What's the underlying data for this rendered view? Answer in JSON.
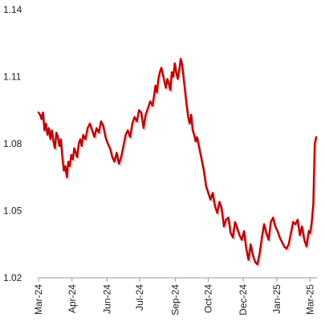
{
  "chart_data": {
    "type": "line",
    "title": "",
    "xlabel": "",
    "ylabel": "",
    "ylim": [
      1.02,
      1.14
    ],
    "yticks": [
      "1.02",
      "1.05",
      "1.08",
      "1.11",
      "1.14"
    ],
    "xticks": [
      "Mar-24",
      "Apr-24",
      "Jun-24",
      "Jul-24",
      "Sep-24",
      "Oct-24",
      "Dec-24",
      "Jan-25",
      "Mar-25"
    ],
    "grid": false,
    "legend": "none",
    "colors": {
      "line": "#c00000",
      "axis": "#9a9a9a",
      "text": "#222222"
    },
    "series": [
      {
        "x": [
          "2024-03-01",
          "2024-03-03",
          "2024-03-05",
          "2024-03-07",
          "2024-03-09",
          "2024-03-11",
          "2024-03-13",
          "2024-03-15",
          "2024-03-17",
          "2024-03-19",
          "2024-03-21",
          "2024-03-23",
          "2024-03-25",
          "2024-03-27",
          "2024-03-29",
          "2024-03-31",
          "2024-04-02",
          "2024-04-04",
          "2024-04-06",
          "2024-04-08",
          "2024-04-10",
          "2024-04-12",
          "2024-04-14",
          "2024-04-16",
          "2024-04-18",
          "2024-04-20",
          "2024-04-22",
          "2024-04-24",
          "2024-04-26",
          "2024-04-28",
          "2024-04-30",
          "2024-05-03",
          "2024-05-06",
          "2024-05-09",
          "2024-05-12",
          "2024-05-15",
          "2024-05-18",
          "2024-05-21",
          "2024-05-24",
          "2024-05-27",
          "2024-05-30",
          "2024-06-02",
          "2024-06-05",
          "2024-06-08",
          "2024-06-11",
          "2024-06-14",
          "2024-06-17",
          "2024-06-20",
          "2024-06-23",
          "2024-06-26",
          "2024-06-29",
          "2024-07-02",
          "2024-07-05",
          "2024-07-08",
          "2024-07-11",
          "2024-07-14",
          "2024-07-17",
          "2024-07-20",
          "2024-07-23",
          "2024-07-26",
          "2024-07-29",
          "2024-08-01",
          "2024-08-03",
          "2024-08-05",
          "2024-08-07",
          "2024-08-09",
          "2024-08-11",
          "2024-08-13",
          "2024-08-15",
          "2024-08-17",
          "2024-08-19",
          "2024-08-21",
          "2024-08-23",
          "2024-08-25",
          "2024-08-27",
          "2024-08-29",
          "2024-08-31",
          "2024-09-02",
          "2024-09-04",
          "2024-09-06",
          "2024-09-08",
          "2024-09-10",
          "2024-09-12",
          "2024-09-14",
          "2024-09-16",
          "2024-09-18",
          "2024-09-20",
          "2024-09-22",
          "2024-09-24",
          "2024-09-26",
          "2024-09-28",
          "2024-09-30",
          "2024-10-03",
          "2024-10-06",
          "2024-10-09",
          "2024-10-12",
          "2024-10-15",
          "2024-10-18",
          "2024-10-21",
          "2024-10-24",
          "2024-10-27",
          "2024-10-30",
          "2024-11-02",
          "2024-11-05",
          "2024-11-08",
          "2024-11-11",
          "2024-11-14",
          "2024-11-17",
          "2024-11-20",
          "2024-11-23",
          "2024-11-26",
          "2024-11-29",
          "2024-12-02",
          "2024-12-05",
          "2024-12-08",
          "2024-12-11",
          "2024-12-14",
          "2024-12-17",
          "2024-12-20",
          "2024-12-23",
          "2024-12-26",
          "2024-12-29",
          "2025-01-01",
          "2025-01-04",
          "2025-01-07",
          "2025-01-10",
          "2025-01-13",
          "2025-01-16",
          "2025-01-19",
          "2025-01-22",
          "2025-01-25",
          "2025-01-28",
          "2025-01-31",
          "2025-02-03",
          "2025-02-06",
          "2025-02-09",
          "2025-02-12",
          "2025-02-15",
          "2025-02-18",
          "2025-02-21",
          "2025-02-24",
          "2025-02-27",
          "2025-03-01",
          "2025-03-03",
          "2025-03-05",
          "2025-03-07",
          "2025-03-09"
        ],
        "y": [
          1.094,
          1.093,
          1.091,
          1.094,
          1.086,
          1.089,
          1.084,
          1.087,
          1.082,
          1.086,
          1.081,
          1.078,
          1.085,
          1.083,
          1.079,
          1.082,
          1.074,
          1.068,
          1.07,
          1.065,
          1.072,
          1.07,
          1.075,
          1.073,
          1.078,
          1.076,
          1.074,
          1.08,
          1.082,
          1.079,
          1.084,
          1.082,
          1.087,
          1.089,
          1.086,
          1.083,
          1.087,
          1.085,
          1.09,
          1.088,
          1.083,
          1.08,
          1.078,
          1.074,
          1.072,
          1.076,
          1.071,
          1.074,
          1.079,
          1.084,
          1.086,
          1.083,
          1.089,
          1.092,
          1.09,
          1.095,
          1.094,
          1.087,
          1.093,
          1.096,
          1.099,
          1.097,
          1.101,
          1.106,
          1.103,
          1.109,
          1.112,
          1.114,
          1.111,
          1.108,
          1.105,
          1.109,
          1.107,
          1.104,
          1.112,
          1.11,
          1.116,
          1.112,
          1.109,
          1.113,
          1.118,
          1.115,
          1.109,
          1.103,
          1.097,
          1.092,
          1.089,
          1.093,
          1.086,
          1.084,
          1.081,
          1.083,
          1.078,
          1.073,
          1.068,
          1.061,
          1.058,
          1.055,
          1.058,
          1.052,
          1.049,
          1.054,
          1.051,
          1.043,
          1.046,
          1.047,
          1.04,
          1.038,
          1.045,
          1.042,
          1.039,
          1.037,
          1.041,
          1.033,
          1.028,
          1.035,
          1.03,
          1.027,
          1.026,
          1.031,
          1.038,
          1.044,
          1.04,
          1.037,
          1.045,
          1.047,
          1.043,
          1.041,
          1.038,
          1.036,
          1.034,
          1.033,
          1.035,
          1.04,
          1.045,
          1.044,
          1.046,
          1.039,
          1.043,
          1.037,
          1.034,
          1.041,
          1.04,
          1.045,
          1.053,
          1.08,
          1.083
        ]
      }
    ]
  }
}
